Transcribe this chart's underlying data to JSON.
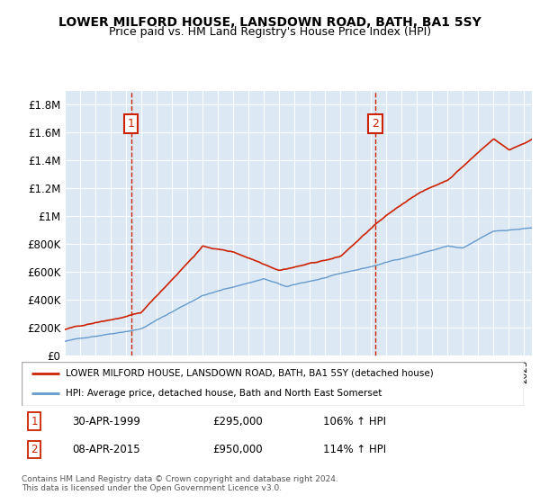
{
  "title": "LOWER MILFORD HOUSE, LANSDOWN ROAD, BATH, BA1 5SY",
  "subtitle": "Price paid vs. HM Land Registry's House Price Index (HPI)",
  "hpi_line_color": "#6699cc",
  "price_line_color": "#cc2200",
  "annotation_box_color": "#cc2200",
  "background_color": "#dce9f5",
  "sale1_date": 1999.33,
  "sale1_price": 295000,
  "sale2_date": 2015.27,
  "sale2_price": 950000,
  "legend_line1": "LOWER MILFORD HOUSE, LANSDOWN ROAD, BATH, BA1 5SY (detached house)",
  "legend_line2": "HPI: Average price, detached house, Bath and North East Somerset",
  "table_row1": [
    "1",
    "30-APR-1999",
    "£295,000",
    "106% ↑ HPI"
  ],
  "table_row2": [
    "2",
    "08-APR-2015",
    "£950,000",
    "114% ↑ HPI"
  ],
  "footnote": "Contains HM Land Registry data © Crown copyright and database right 2024.\nThis data is licensed under the Open Government Licence v3.0.",
  "ylim": [
    0,
    1900000
  ],
  "xlim_start": 1995.0,
  "xlim_end": 2025.5
}
